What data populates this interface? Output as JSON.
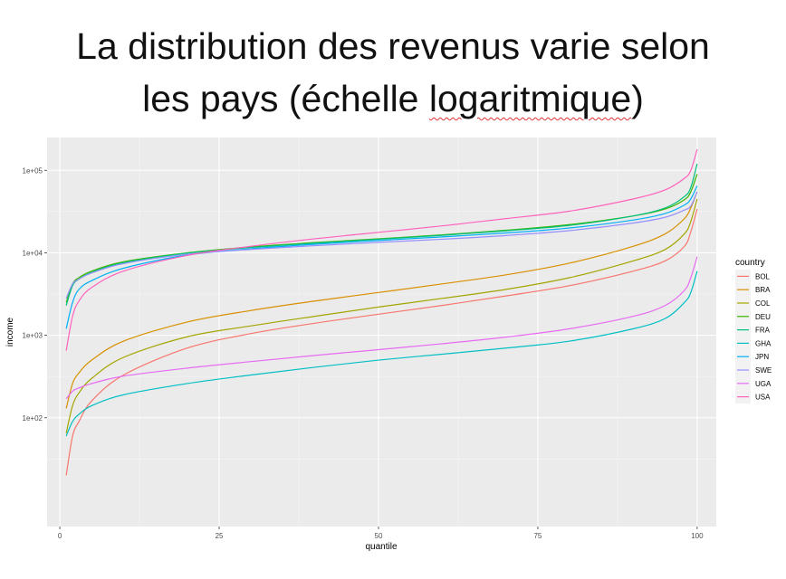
{
  "slide": {
    "title_line1": "La distribution des revenus varie selon",
    "title_line2_pre": "les pays (échelle ",
    "title_line2_misspelled": "logaritmique",
    "title_line2_post": ")"
  },
  "colors": {
    "panel_bg": "#ebebeb",
    "grid_major": "#ffffff",
    "grid_minor": "#f5f5f5"
  },
  "chart_data": {
    "type": "line",
    "title": "",
    "xlabel": "quantile",
    "ylabel": "income",
    "xlim": [
      -2,
      103
    ],
    "ylim": [
      4.8,
      250000
    ],
    "y_scale": "log10",
    "x_ticks": [
      0,
      25,
      50,
      75,
      100
    ],
    "x_tick_labels": [
      "0",
      "25",
      "50",
      "75",
      "100"
    ],
    "y_ticks": [
      100,
      1000,
      10000,
      100000
    ],
    "y_tick_labels": [
      "1e+02",
      "1e+03",
      "1e+04",
      "1e+05"
    ],
    "grid": true,
    "legend": {
      "title": "country",
      "position": "right"
    },
    "x": [
      1,
      2,
      3,
      5,
      10,
      20,
      30,
      40,
      50,
      60,
      70,
      80,
      90,
      95,
      98,
      99,
      100
    ],
    "series": [
      {
        "name": "BOL",
        "color": "#F8766D",
        "values": [
          20,
          60,
          90,
          160,
          330,
          700,
          1050,
          1400,
          1800,
          2300,
          3000,
          4000,
          6000,
          8000,
          12000,
          18000,
          34000
        ]
      },
      {
        "name": "BRA",
        "color": "#D89000",
        "values": [
          130,
          260,
          350,
          500,
          850,
          1450,
          2000,
          2600,
          3300,
          4200,
          5400,
          7500,
          12000,
          17000,
          26000,
          35000,
          55000
        ]
      },
      {
        "name": "COL",
        "color": "#A3A500",
        "values": [
          65,
          140,
          200,
          300,
          540,
          960,
          1300,
          1700,
          2200,
          2800,
          3600,
          5000,
          8000,
          11000,
          17000,
          24000,
          45000
        ]
      },
      {
        "name": "DEU",
        "color": "#39B600",
        "values": [
          2500,
          4200,
          5000,
          6000,
          7800,
          10000,
          11800,
          13300,
          14800,
          16500,
          18800,
          22000,
          28000,
          34000,
          44000,
          55000,
          90000
        ]
      },
      {
        "name": "FRA",
        "color": "#00BF7D",
        "values": [
          2300,
          4000,
          4800,
          5800,
          7600,
          9900,
          11600,
          13100,
          14600,
          16300,
          18500,
          21500,
          28000,
          35000,
          48000,
          62000,
          120000
        ]
      },
      {
        "name": "GHA",
        "color": "#00BFC4",
        "values": [
          60,
          90,
          110,
          140,
          190,
          260,
          330,
          410,
          500,
          590,
          700,
          850,
          1200,
          1600,
          2500,
          3300,
          6000
        ]
      },
      {
        "name": "JPN",
        "color": "#00B0F6",
        "values": [
          1200,
          2500,
          3600,
          4600,
          6500,
          9400,
          11200,
          12700,
          14100,
          15600,
          17400,
          20000,
          25000,
          30000,
          38000,
          45000,
          65000
        ]
      },
      {
        "name": "SWE",
        "color": "#9590FF",
        "values": [
          2800,
          4200,
          4800,
          5700,
          7400,
          9600,
          11000,
          12200,
          13400,
          14600,
          16200,
          18600,
          23000,
          27000,
          33000,
          37000,
          55000
        ]
      },
      {
        "name": "UGA",
        "color": "#E76BF3",
        "values": [
          170,
          210,
          230,
          260,
          320,
          400,
          480,
          570,
          670,
          790,
          950,
          1200,
          1700,
          2300,
          3500,
          5000,
          9000
        ]
      },
      {
        "name": "USA",
        "color": "#FF62BC",
        "values": [
          650,
          1700,
          2600,
          3800,
          6000,
          9300,
          12000,
          14800,
          17700,
          21200,
          26000,
          32000,
          45000,
          58000,
          80000,
          100000,
          180000
        ]
      }
    ]
  }
}
